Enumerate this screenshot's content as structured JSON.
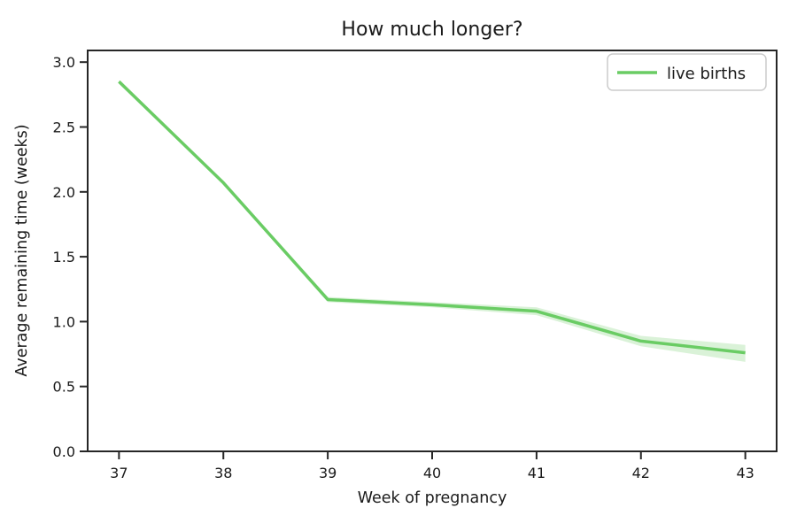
{
  "figure": {
    "background": "#ffffff",
    "spine_color": "#262626",
    "text_color": "#1a1a1a"
  },
  "legend": {
    "entries": [
      {
        "label": "live births",
        "color": "#6acc64"
      }
    ],
    "position": "upper right",
    "border_color": "#cccccc"
  },
  "chart_data": {
    "type": "line",
    "title": "How much longer?",
    "xlabel": "Week of pregnancy",
    "ylabel": "Average remaining time (weeks)",
    "x": [
      37,
      38,
      39,
      40,
      41,
      42,
      43
    ],
    "series": [
      {
        "name": "live births",
        "values": [
          2.85,
          2.07,
          1.17,
          1.13,
          1.08,
          0.85,
          0.76
        ],
        "ci_lower": [
          2.84,
          2.06,
          1.15,
          1.11,
          1.05,
          0.81,
          0.69
        ],
        "ci_upper": [
          2.86,
          2.08,
          1.19,
          1.15,
          1.11,
          0.89,
          0.82
        ],
        "color": "#6acc64",
        "band_opacity": 0.25,
        "line_width": 3.5
      }
    ],
    "xlim": [
      36.7,
      43.3
    ],
    "ylim": [
      0,
      3.09
    ],
    "xticks": [
      37,
      38,
      39,
      40,
      41,
      42,
      43
    ],
    "xtick_labels": [
      "37",
      "38",
      "39",
      "40",
      "41",
      "42",
      "43"
    ],
    "yticks": [
      0.0,
      0.5,
      1.0,
      1.5,
      2.0,
      2.5,
      3.0
    ],
    "ytick_labels": [
      "0.0",
      "0.5",
      "1.0",
      "1.5",
      "2.0",
      "2.5",
      "3.0"
    ],
    "grid": false,
    "legend_position": "upper right"
  }
}
